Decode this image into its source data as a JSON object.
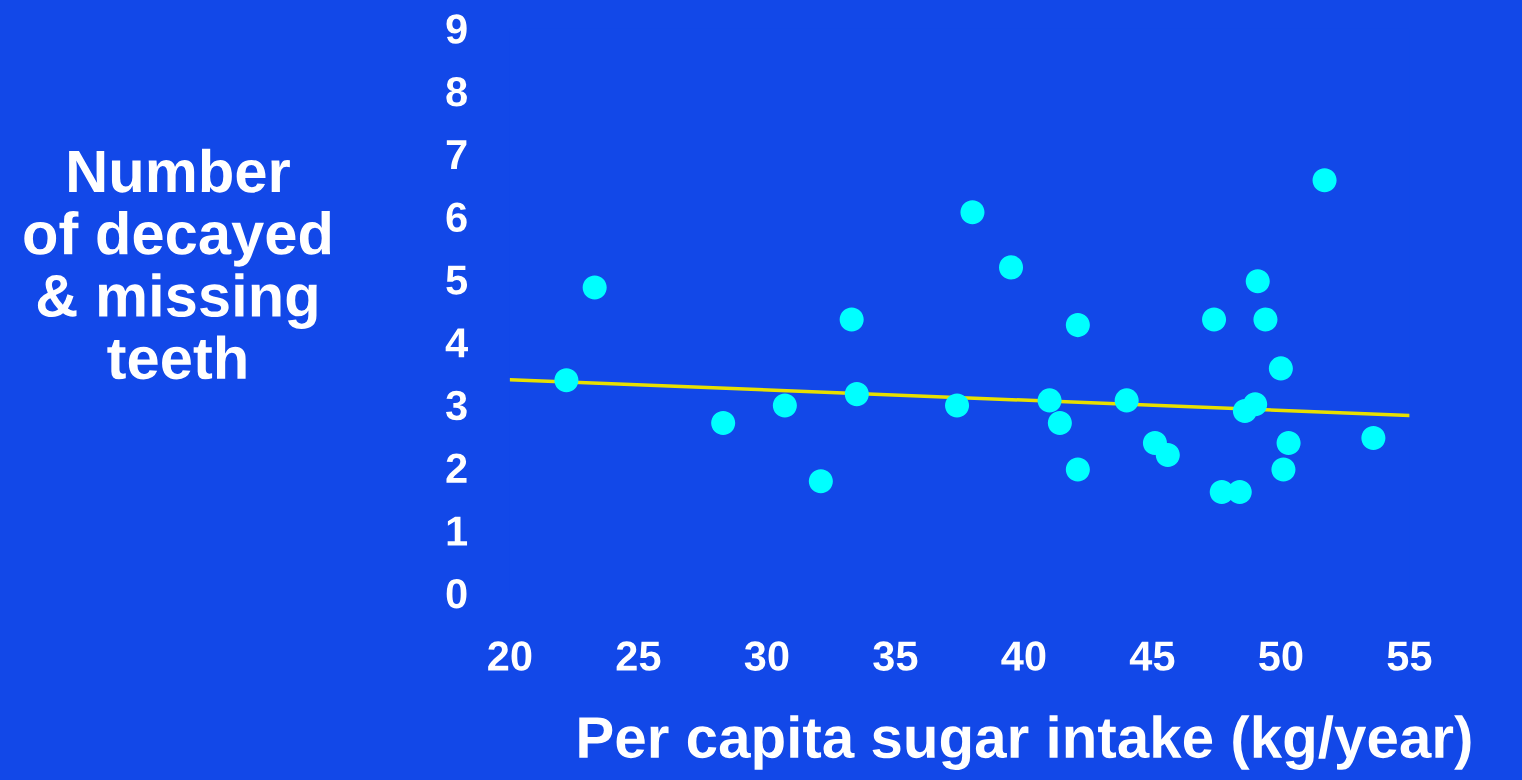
{
  "chart_data": {
    "type": "scatter",
    "xlabel": "Per capita sugar intake (kg/year)",
    "ylabel": "Number\nof decayed\n& missing\nteeth",
    "xlim": [
      20,
      55
    ],
    "ylim": [
      0,
      9
    ],
    "xticks": [
      20,
      25,
      30,
      35,
      40,
      45,
      50,
      55
    ],
    "yticks": [
      0,
      1,
      2,
      3,
      4,
      5,
      6,
      7,
      8,
      9
    ],
    "grid": false,
    "legend": false,
    "marker": "circle",
    "series": [
      {
        "color": "#00ffff",
        "x": [
          22.2,
          23.3,
          28.3,
          30.7,
          32.1,
          33.3,
          33.5,
          37.4,
          38.0,
          39.5,
          41.0,
          41.4,
          42.1,
          42.1,
          44.0,
          45.1,
          45.6,
          47.4,
          47.7,
          48.4,
          48.6,
          49.0,
          49.1,
          49.4,
          50.0,
          50.3,
          50.1,
          51.7,
          53.6
        ],
        "values": [
          3.39,
          4.87,
          2.71,
          2.99,
          1.78,
          4.36,
          3.17,
          2.99,
          6.07,
          5.19,
          3.07,
          2.71,
          4.27,
          1.97,
          3.07,
          2.39,
          2.2,
          4.36,
          1.61,
          1.61,
          2.9,
          3.01,
          4.97,
          4.36,
          3.58,
          2.39,
          1.97,
          6.58,
          2.47
        ]
      },
      {
        "type": "line",
        "marker": "none",
        "color": "#e8e000",
        "x": [
          20,
          55
        ],
        "values": [
          3.4,
          2.83
        ]
      }
    ]
  }
}
